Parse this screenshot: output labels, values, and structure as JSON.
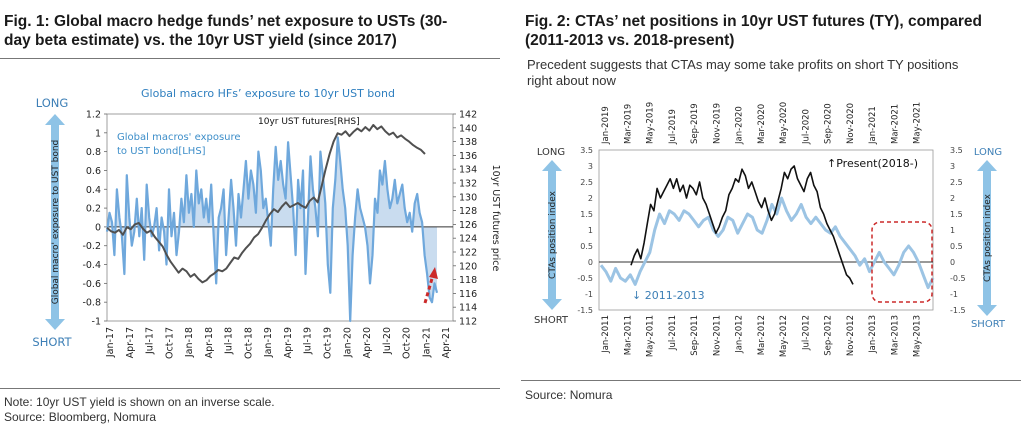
{
  "panel1": {
    "title_line1": "Fig. 1: Global macro hedge funds’ net exposure to USTs (30-",
    "title_line2": "day beta estimate) vs. the 10yr UST yield (since 2017)",
    "note": "Note: 10yr UST yield is shown on an inverse scale.",
    "source": "Source: Bloomberg, Nomura"
  },
  "panel2": {
    "title_line1": "Fig. 2: CTAs’ net positions in 10yr UST futures (TY), compared",
    "title_line2": "(2011-2013 vs. 2018-present)",
    "subtitle_line1": "Precedent suggests that CTAs may some take profits on short TY positions",
    "subtitle_line2": "right about now",
    "source": "Source: Nomura"
  },
  "colors": {
    "light_blue": "#6fa8dc",
    "area_fill": "#c9dcef",
    "dark_line": "#505050",
    "black_line": "#111111",
    "arrow_blue": "#8ec3e6",
    "label_blue": "#3d8ec9",
    "red": "#cc2a2a"
  },
  "chart_data": [
    {
      "type": "area",
      "title": "Global macro HFs’ exposure to 10yr UST bond",
      "long_label": "LONG",
      "short_label": "SHORT",
      "arrow_label": "Global macro' exposure to UST bond",
      "ylabel_right": "10yr UST futures price",
      "ylim_left": [
        -1,
        1.2
      ],
      "ylim_right": [
        112,
        142
      ],
      "left_ticks": [
        "1.2",
        "1",
        "0.8",
        "0.6",
        "0.4",
        "0.2",
        "0",
        "-0.2",
        "-0.4",
        "-0.6",
        "-0.8",
        "-1"
      ],
      "right_ticks": [
        "142",
        "140",
        "138",
        "136",
        "134",
        "132",
        "130",
        "128",
        "126",
        "124",
        "122",
        "120",
        "118",
        "116",
        "114",
        "112"
      ],
      "x_ticks": [
        "Jan-17",
        "Apr-17",
        "Jul-17",
        "Oct-17",
        "Jan-18",
        "Apr-18",
        "Jul-18",
        "Oct-18",
        "Jan-19",
        "Apr-19",
        "Jul-19",
        "Oct-19",
        "Jan-20",
        "Apr-20",
        "Jul-20",
        "Oct-20",
        "Jan-21",
        "Apr-21"
      ],
      "series": [
        {
          "name": "Global macros' exposure to UST bond[LHS]",
          "legend_line1": "Global macros' exposure",
          "legend_line2": "to UST bond[LHS]",
          "axis": "left",
          "values": [
            -0.05,
            0.15,
            0.05,
            -0.3,
            0.4,
            0.1,
            -0.1,
            -0.5,
            0.55,
            0.1,
            -0.2,
            -0.05,
            0.3,
            -0.1,
            0.2,
            -0.35,
            0.45,
            0.1,
            -0.1,
            0.0,
            0.2,
            -0.25,
            0.1,
            -0.05,
            -0.4,
            0.4,
            -0.1,
            0.15,
            -0.3,
            -0.05,
            0.3,
            0.05,
            0.55,
            0.15,
            0.35,
            0.0,
            0.6,
            0.25,
            0.4,
            0.1,
            0.3,
            0.05,
            0.45,
            -0.1,
            -0.6,
            0.1,
            0.2,
            0.4,
            -0.3,
            0.1,
            0.5,
            0.2,
            -0.2,
            0.35,
            0.1,
            0.4,
            0.7,
            0.3,
            0.6,
            0.45,
            0.15,
            0.8,
            0.6,
            0.2,
            0.3,
            0.05,
            -0.2,
            0.4,
            0.85,
            0.5,
            0.7,
            0.45,
            0.3,
            0.9,
            0.55,
            0.2,
            -0.3,
            0.5,
            0.2,
            0.6,
            -0.5,
            0.1,
            0.75,
            0.4,
            0.2,
            -0.1,
            0.8,
            0.55,
            0.25,
            -0.4,
            -0.7,
            0.2,
            0.5,
            0.95,
            0.7,
            0.4,
            0.2,
            -0.2,
            -1.0,
            -0.3,
            0.1,
            0.4,
            0.2,
            0.1,
            0.0,
            -0.2,
            -0.6,
            -0.3,
            0.3,
            0.15,
            0.6,
            0.45,
            0.7,
            0.4,
            0.2,
            0.3,
            0.5,
            0.25,
            0.35,
            0.45,
            0.2,
            0.05,
            0.15,
            -0.05,
            0.25,
            0.35,
            0.15,
            0.05,
            -0.3,
            -0.5,
            -0.75,
            -0.8,
            -0.6,
            -0.7
          ]
        },
        {
          "name": "10yr UST futures[RHS]",
          "axis": "right",
          "values": [
            125.5,
            125.0,
            124.8,
            125.2,
            124.5,
            125.6,
            125.3,
            126.0,
            126.2,
            125.4,
            124.8,
            125.1,
            124.2,
            123.5,
            122.8,
            121.6,
            120.6,
            119.8,
            119.0,
            119.6,
            119.2,
            118.4,
            118.8,
            118.1,
            117.6,
            117.9,
            118.5,
            118.9,
            119.4,
            119.2,
            119.6,
            120.4,
            121.2,
            121.0,
            121.9,
            122.6,
            123.2,
            124.1,
            124.6,
            125.5,
            126.6,
            127.5,
            128.2,
            127.8,
            128.6,
            129.2,
            128.5,
            128.8,
            129.1,
            128.7,
            128.4,
            129.4,
            129.9,
            129.2,
            131.5,
            134.0,
            136.2,
            138.0,
            139.2,
            139.0,
            139.5,
            138.8,
            139.4,
            139.9,
            139.5,
            140.1,
            139.6,
            140.4,
            139.8,
            140.2,
            139.5,
            139.0,
            139.3,
            138.6,
            138.9,
            138.4,
            138.0,
            137.5,
            137.1,
            136.8,
            136.2
          ]
        }
      ]
    },
    {
      "type": "line",
      "long_label": "LONG",
      "short_label": "SHORT",
      "ylabel_left": "CTAs position index",
      "ylabel_right": "CTAs position index",
      "ylim": [
        -1.5,
        3.5
      ],
      "left_ticks": [
        "3.5",
        "3",
        "2.5",
        "2",
        "1.5",
        "1",
        "0.5",
        "0",
        "-0.5",
        "-1",
        "-1.5"
      ],
      "right_ticks": [
        "3.5",
        "3",
        "2.5",
        "2",
        "1.5",
        "1",
        "0.5",
        "0",
        "-0.5",
        "-1",
        "-1.5"
      ],
      "x_top_ticks": [
        "Jan-2019",
        "Mar-2019",
        "May-2019",
        "Jul-2019",
        "Sep-2019",
        "Nov-2019",
        "Jan-2020",
        "Mar-2020",
        "May-2020",
        "Jul-2020",
        "Sep-2020",
        "Nov-2020",
        "Jan-2021",
        "Mar-2021",
        "May-2021"
      ],
      "x_bottom_ticks": [
        "Jan-2011",
        "Mar-2011",
        "May-2011",
        "Jul-2011",
        "Sep-2011",
        "Nov-2011",
        "Jan-2012",
        "Mar-2012",
        "May-2012",
        "Jul-2012",
        "Sep-2012",
        "Nov-2012",
        "Jan-2013",
        "Mar-2013",
        "May-2013"
      ],
      "annotations": [
        "↑Present(2018-)",
        "↓ 2011-2013"
      ],
      "series": [
        {
          "name": "Present(2018-)",
          "values": [
            -0.1,
            0.2,
            0.4,
            0.1,
            0.6,
            1.2,
            1.8,
            1.6,
            2.3,
            2.0,
            2.2,
            2.4,
            2.6,
            2.3,
            2.6,
            2.2,
            2.4,
            2.0,
            2.4,
            2.3,
            2.1,
            2.5,
            2.0,
            1.8,
            1.5,
            1.2,
            0.9,
            1.1,
            1.4,
            1.6,
            2.1,
            2.3,
            2.6,
            2.5,
            2.9,
            2.7,
            2.3,
            2.5,
            2.2,
            1.9,
            1.7,
            2.0,
            1.6,
            1.3,
            1.5,
            1.9,
            2.3,
            2.8,
            2.6,
            2.9,
            3.0,
            2.6,
            2.4,
            2.2,
            2.6,
            2.8,
            2.4,
            2.2,
            1.7,
            1.5,
            1.2,
            1.0,
            0.8,
            0.5,
            0.2,
            -0.1,
            -0.4,
            -0.5,
            -0.7
          ]
        },
        {
          "name": "2011-2013",
          "values": [
            -0.1,
            -0.3,
            -0.6,
            -0.2,
            -0.5,
            -0.6,
            -0.4,
            -0.7,
            -0.3,
            0.0,
            0.3,
            1.0,
            1.5,
            1.2,
            1.6,
            1.5,
            1.3,
            1.6,
            1.5,
            1.3,
            1.1,
            1.3,
            1.4,
            1.0,
            0.8,
            1.0,
            1.4,
            1.3,
            0.9,
            1.2,
            1.5,
            1.4,
            1.0,
            0.9,
            1.3,
            1.8,
            1.5,
            2.0,
            1.6,
            1.3,
            1.5,
            1.8,
            1.4,
            1.2,
            1.4,
            1.2,
            1.0,
            0.9,
            1.1,
            0.8,
            0.6,
            0.4,
            0.2,
            -0.1,
            0.1,
            -0.3,
            0.0,
            0.3,
            0.0,
            -0.2,
            -0.4,
            -0.1,
            0.3,
            0.5,
            0.3,
            0.0,
            -0.4,
            -0.8,
            -0.5
          ]
        }
      ]
    }
  ]
}
